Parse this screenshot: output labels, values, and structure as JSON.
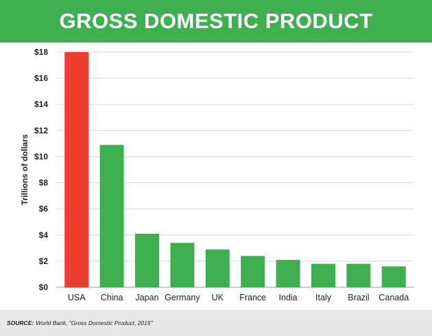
{
  "title": "GROSS DOMESTIC PRODUCT",
  "source": {
    "label": "SOURCE:",
    "text": "World Bank, \"Gross Domestic Product, 2015\""
  },
  "colors": {
    "banner": "#3fb04f",
    "highlight_bar": "#f03c2e",
    "bar": "#3fb04f",
    "grid": "#d9d9d9"
  },
  "chart_data": {
    "type": "bar",
    "categories": [
      "USA",
      "China",
      "Japan",
      "Germany",
      "UK",
      "France",
      "India",
      "Italy",
      "Brazil",
      "Canada"
    ],
    "values": [
      18.0,
      10.9,
      4.1,
      3.4,
      2.9,
      2.4,
      2.1,
      1.8,
      1.8,
      1.6
    ],
    "highlight_index": 0,
    "ylabel": "Trillions of dollars",
    "xlabel": "",
    "ylim": [
      0,
      18
    ],
    "yticks": [
      0,
      2,
      4,
      6,
      8,
      10,
      12,
      14,
      16,
      18
    ],
    "ytick_labels": [
      "$0",
      "$2",
      "$4",
      "$6",
      "$8",
      "$10",
      "$12",
      "$14",
      "$16",
      "$18"
    ],
    "grid": true,
    "legend": "none"
  }
}
